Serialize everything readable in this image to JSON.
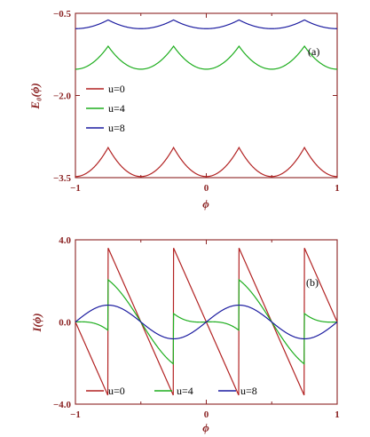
{
  "colors": {
    "u0": "#b22222",
    "u4": "#1fae1f",
    "u8": "#1c1ca0",
    "axis": "#8b2323"
  },
  "chart_data": [
    {
      "id": "a",
      "type": "line",
      "panel_label": "(a)",
      "xlabel": "ϕ",
      "ylabel": "E₀(ϕ)",
      "xlim": [
        -1,
        1
      ],
      "ylim": [
        -3.5,
        -0.5
      ],
      "xticks": [
        -1,
        0,
        1
      ],
      "xtick_labels": [
        "−1",
        "0",
        "1"
      ],
      "yticks": [
        -3.5,
        -2.0,
        -0.5
      ],
      "ytick_labels": [
        "−3.5",
        "−2.0",
        "−0.5"
      ],
      "legend_position": "left-middle",
      "series": [
        {
          "name": "u=0",
          "color_key": "u0",
          "model": "parabolic",
          "peak": -2.95,
          "trough": -3.48
        },
        {
          "name": "u=4",
          "color_key": "u4",
          "model": "parabolic",
          "peak": -1.1,
          "trough": -1.52
        },
        {
          "name": "u=8",
          "color_key": "u8",
          "model": "parabolic",
          "peak": -0.62,
          "trough": -0.78
        }
      ]
    },
    {
      "id": "b",
      "type": "line",
      "panel_label": "(b)",
      "xlabel": "ϕ",
      "ylabel": "I(ϕ)",
      "xlim": [
        -1,
        1
      ],
      "ylim": [
        -4.0,
        4.0
      ],
      "xticks": [
        -1,
        0,
        1
      ],
      "xtick_labels": [
        "−1",
        "0",
        "1"
      ],
      "yticks": [
        -4.0,
        0.0,
        4.0
      ],
      "ytick_labels": [
        "−4.0",
        "0.0",
        "4.0"
      ],
      "legend_position": "bottom",
      "series": [
        {
          "name": "u=0",
          "color_key": "u0",
          "model": "sawtooth",
          "amplitude": 3.6
        },
        {
          "name": "u=4",
          "color_key": "u4",
          "model": "soft-sawtooth",
          "amplitude": 2.05
        },
        {
          "name": "u=8",
          "color_key": "u8",
          "model": "sine",
          "amplitude": 0.82
        }
      ]
    }
  ]
}
